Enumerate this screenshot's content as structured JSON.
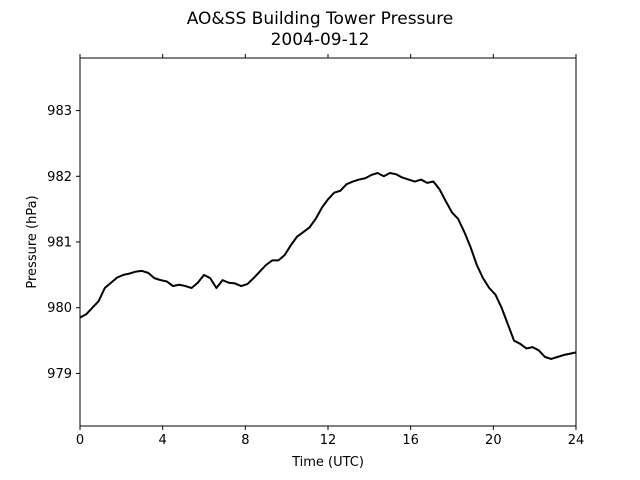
{
  "chart_data": {
    "type": "line",
    "title": "AO&SS Building Tower Pressure",
    "subtitle": "2004-09-12",
    "xlabel": "Time (UTC)",
    "ylabel": "Pressure (hPa)",
    "xlim": [
      0,
      24
    ],
    "ylim": [
      978.2,
      983.8
    ],
    "xticks": [
      0,
      4,
      8,
      12,
      16,
      20,
      24
    ],
    "yticks": [
      979,
      980,
      981,
      982,
      983
    ],
    "grid": false,
    "series": [
      {
        "color": "#000000",
        "x": [
          0,
          0.3,
          0.6,
          0.9,
          1.2,
          1.5,
          1.8,
          2.1,
          2.4,
          2.7,
          3.0,
          3.3,
          3.6,
          3.9,
          4.2,
          4.5,
          4.8,
          5.1,
          5.4,
          5.7,
          6.0,
          6.3,
          6.6,
          6.9,
          7.2,
          7.5,
          7.8,
          8.1,
          8.4,
          8.7,
          9.0,
          9.3,
          9.6,
          9.9,
          10.2,
          10.5,
          10.8,
          11.1,
          11.4,
          11.7,
          12.0,
          12.3,
          12.6,
          12.9,
          13.2,
          13.5,
          13.8,
          14.1,
          14.4,
          14.7,
          15.0,
          15.3,
          15.6,
          15.9,
          16.2,
          16.5,
          16.8,
          17.1,
          17.4,
          17.7,
          18.0,
          18.3,
          18.6,
          18.9,
          19.2,
          19.5,
          19.8,
          20.1,
          20.4,
          20.7,
          21.0,
          21.3,
          21.6,
          21.9,
          22.2,
          22.5,
          22.8,
          23.1,
          23.4,
          23.7,
          24.0
        ],
        "y": [
          979.85,
          979.9,
          980.0,
          980.1,
          980.3,
          980.38,
          980.46,
          980.5,
          980.52,
          980.55,
          980.56,
          980.53,
          980.45,
          980.42,
          980.4,
          980.33,
          980.35,
          980.33,
          980.3,
          980.38,
          980.5,
          980.45,
          980.3,
          980.42,
          980.38,
          980.37,
          980.33,
          980.36,
          980.45,
          980.55,
          980.65,
          980.72,
          980.72,
          980.8,
          980.95,
          981.08,
          981.15,
          981.22,
          981.35,
          981.52,
          981.65,
          981.75,
          981.78,
          981.88,
          981.92,
          981.95,
          981.97,
          982.02,
          982.05,
          982.0,
          982.05,
          982.03,
          981.98,
          981.95,
          981.92,
          981.95,
          981.9,
          981.92,
          981.8,
          981.62,
          981.45,
          981.35,
          981.15,
          980.92,
          980.65,
          980.45,
          980.3,
          980.2,
          980.0,
          979.75,
          979.5,
          979.45,
          979.38,
          979.4,
          979.35,
          979.25,
          979.22,
          979.25,
          979.28,
          979.3,
          979.32
        ]
      }
    ]
  }
}
